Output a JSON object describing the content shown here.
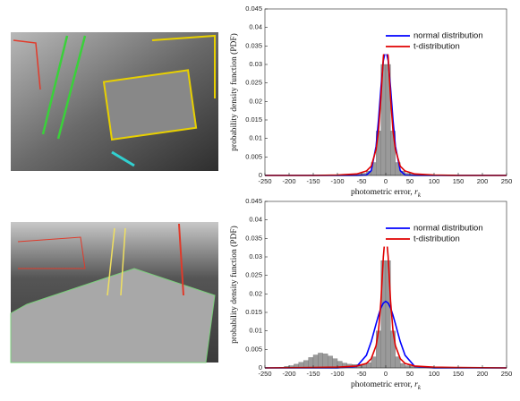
{
  "chart_data": [
    {
      "type": "line",
      "xlabel": "photometric error, ",
      "xlabel_symbol": "r",
      "xlabel_subscript": "k",
      "ylabel": "probability density function (PDF)",
      "x": [
        -250,
        -150,
        -100,
        -60,
        -40,
        -30,
        -20,
        -15,
        -10,
        -5,
        0,
        5,
        10,
        15,
        20,
        30,
        40,
        60,
        100,
        150,
        250
      ],
      "series": [
        {
          "name": "normal distribution",
          "color": "#0000ff",
          "values": [
            0,
            0,
            0,
            0,
            0.0001,
            0.0013,
            0.0079,
            0.015,
            0.0236,
            0.031,
            0.034,
            0.031,
            0.0236,
            0.015,
            0.0079,
            0.0013,
            0.0001,
            0,
            0,
            0,
            0
          ]
        },
        {
          "name": "t-distribution",
          "color": "#e00000",
          "values": [
            0,
            0,
            0.0001,
            0.0004,
            0.0012,
            0.0025,
            0.007,
            0.012,
            0.021,
            0.032,
            0.038,
            0.032,
            0.021,
            0.012,
            0.007,
            0.0025,
            0.0012,
            0.0004,
            0.0001,
            0,
            0
          ]
        }
      ],
      "histogram": {
        "color": "#9a9a9a",
        "bins": [
          -250,
          -240,
          -230,
          -220,
          -210,
          -200,
          -190,
          -180,
          -170,
          -160,
          -150,
          -140,
          -130,
          -120,
          -110,
          -100,
          -90,
          -80,
          -70,
          -60,
          -50,
          -40,
          -30,
          -20,
          -10,
          0,
          10,
          20,
          30,
          40,
          50,
          60,
          70,
          80,
          90,
          100,
          110,
          120,
          130,
          140,
          150,
          160,
          170,
          180,
          190,
          200,
          210,
          220,
          230,
          240,
          250
        ],
        "values": [
          0,
          0,
          0,
          0,
          0,
          0,
          0,
          0,
          0,
          0.0001,
          0.0001,
          0.0001,
          0.0001,
          0.0001,
          0.0002,
          0.0002,
          0.0002,
          0.0003,
          0.0003,
          0.0004,
          0.0006,
          0.0012,
          0.0035,
          0.012,
          0.03,
          0.03,
          0.012,
          0.0035,
          0.0012,
          0.0006,
          0.0004,
          0.0003,
          0.0002,
          0.0002,
          0.0001,
          0.0001,
          0.0001,
          0.0001,
          0,
          0,
          0,
          0,
          0,
          0,
          0,
          0,
          0,
          0,
          0,
          0
        ]
      },
      "xlim": [
        -250,
        250
      ],
      "xticks": [
        -250,
        -200,
        -150,
        -100,
        -50,
        0,
        50,
        100,
        150,
        200,
        250
      ],
      "ylim": [
        0,
        0.045
      ],
      "yticks": [
        0,
        0.005,
        0.01,
        0.015,
        0.02,
        0.025,
        0.03,
        0.035,
        0.04,
        0.045
      ],
      "legend": "top-right"
    },
    {
      "type": "line",
      "xlabel": "photometric error, ",
      "xlabel_symbol": "r",
      "xlabel_subscript": "k",
      "ylabel": "probability density function (PDF)",
      "x": [
        -250,
        -150,
        -100,
        -60,
        -40,
        -30,
        -20,
        -15,
        -10,
        -5,
        0,
        5,
        10,
        15,
        20,
        30,
        40,
        60,
        100,
        150,
        250
      ],
      "series": [
        {
          "name": "normal distribution",
          "color": "#0000ff",
          "values": [
            0,
            0,
            0,
            0.0004,
            0.0034,
            0.0071,
            0.0119,
            0.0142,
            0.0162,
            0.0175,
            0.018,
            0.0175,
            0.0162,
            0.0142,
            0.0119,
            0.0071,
            0.0034,
            0.0004,
            0,
            0,
            0
          ]
        },
        {
          "name": "t-distribution",
          "color": "#e00000",
          "values": [
            0,
            0.0001,
            0.0002,
            0.0005,
            0.0012,
            0.0025,
            0.006,
            0.01,
            0.018,
            0.03,
            0.0375,
            0.03,
            0.018,
            0.01,
            0.006,
            0.0025,
            0.0012,
            0.0005,
            0.0002,
            0.0001,
            0
          ]
        }
      ],
      "histogram": {
        "color": "#9a9a9a",
        "bins": [
          -250,
          -240,
          -230,
          -220,
          -210,
          -200,
          -190,
          -180,
          -170,
          -160,
          -150,
          -140,
          -130,
          -120,
          -110,
          -100,
          -90,
          -80,
          -70,
          -60,
          -50,
          -40,
          -30,
          -20,
          -10,
          0,
          10,
          20,
          30,
          40,
          50,
          60,
          70,
          80,
          90,
          100,
          110,
          120,
          130,
          140,
          150,
          160,
          170,
          180,
          190,
          200,
          210,
          220,
          230,
          240,
          250
        ],
        "values": [
          0,
          0,
          0.0001,
          0.0002,
          0.0004,
          0.0006,
          0.001,
          0.0015,
          0.002,
          0.0028,
          0.0035,
          0.004,
          0.0038,
          0.0032,
          0.0025,
          0.0018,
          0.0013,
          0.001,
          0.0009,
          0.0009,
          0.001,
          0.0014,
          0.003,
          0.01,
          0.029,
          0.029,
          0.01,
          0.003,
          0.0012,
          0.0006,
          0.0004,
          0.0003,
          0.0002,
          0.0002,
          0.0001,
          0.0001,
          0.0001,
          0,
          0,
          0,
          0,
          0,
          0,
          0,
          0,
          0,
          0,
          0,
          0,
          0
        ]
      },
      "xlim": [
        -250,
        250
      ],
      "xticks": [
        -250,
        -200,
        -150,
        -100,
        -50,
        0,
        50,
        100,
        150,
        200,
        250
      ],
      "ylim": [
        0,
        0.045
      ],
      "yticks": [
        0,
        0.005,
        0.01,
        0.015,
        0.02,
        0.025,
        0.03,
        0.035,
        0.04,
        0.045
      ],
      "legend": "top-right"
    }
  ]
}
